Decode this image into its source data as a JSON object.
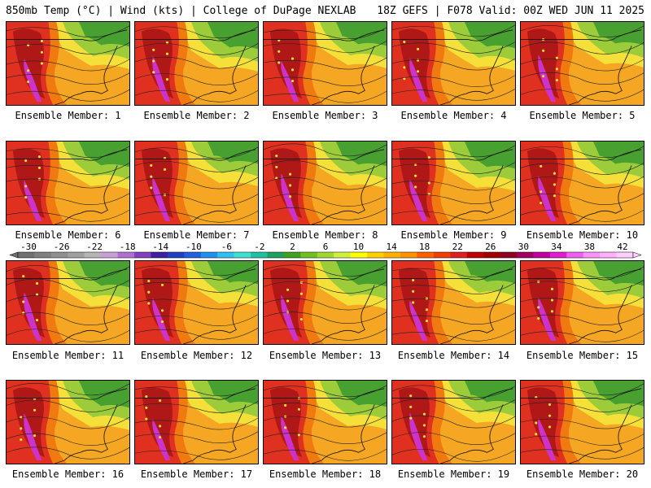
{
  "header": {
    "left": "850mb Temp (°C) | Wind (kts) | College of DuPage NEXLAB",
    "right": "18Z GEFS | F078 Valid: 00Z WED JUN 11 2025"
  },
  "caption_prefix": "Ensemble Member:",
  "members": [
    "1",
    "2",
    "3",
    "4",
    "5",
    "6",
    "7",
    "8",
    "9",
    "10",
    "11",
    "12",
    "13",
    "14",
    "15",
    "16",
    "17",
    "18",
    "19",
    "20"
  ],
  "colorbar": {
    "labels": [
      "-30",
      "-26",
      "-22",
      "-18",
      "-14",
      "-10",
      "-6",
      "-2",
      "2",
      "6",
      "10",
      "14",
      "18",
      "22",
      "26",
      "30",
      "34",
      "38",
      "42"
    ],
    "colors": [
      "#707070",
      "#808080",
      "#909090",
      "#a0a0a0",
      "#b5b5b5",
      "#c8a0d8",
      "#b070d0",
      "#8040c0",
      "#4020a0",
      "#2040c0",
      "#2060e0",
      "#2090f0",
      "#30c0f0",
      "#40e0d0",
      "#20c0a0",
      "#20a060",
      "#40a020",
      "#70c020",
      "#a0d830",
      "#d0f040",
      "#ffff00",
      "#ffd000",
      "#ffb000",
      "#ff9000",
      "#ff6000",
      "#f04000",
      "#e02020",
      "#c00000",
      "#a00000",
      "#900020",
      "#a00060",
      "#c000a0",
      "#e020d0",
      "#f060f0",
      "#ff90ff",
      "#ffb0ff",
      "#ffd0ff"
    ]
  },
  "palette": {
    "warm_low": "#f5a623",
    "warm_mid": "#f07a10",
    "hot": "#e03020",
    "very_hot": "#b01818",
    "extreme": "#cc33cc",
    "yellow": "#f5e03a",
    "light_green": "#9ccc3a",
    "green": "#48a030",
    "dark_green": "#2a8a40"
  }
}
